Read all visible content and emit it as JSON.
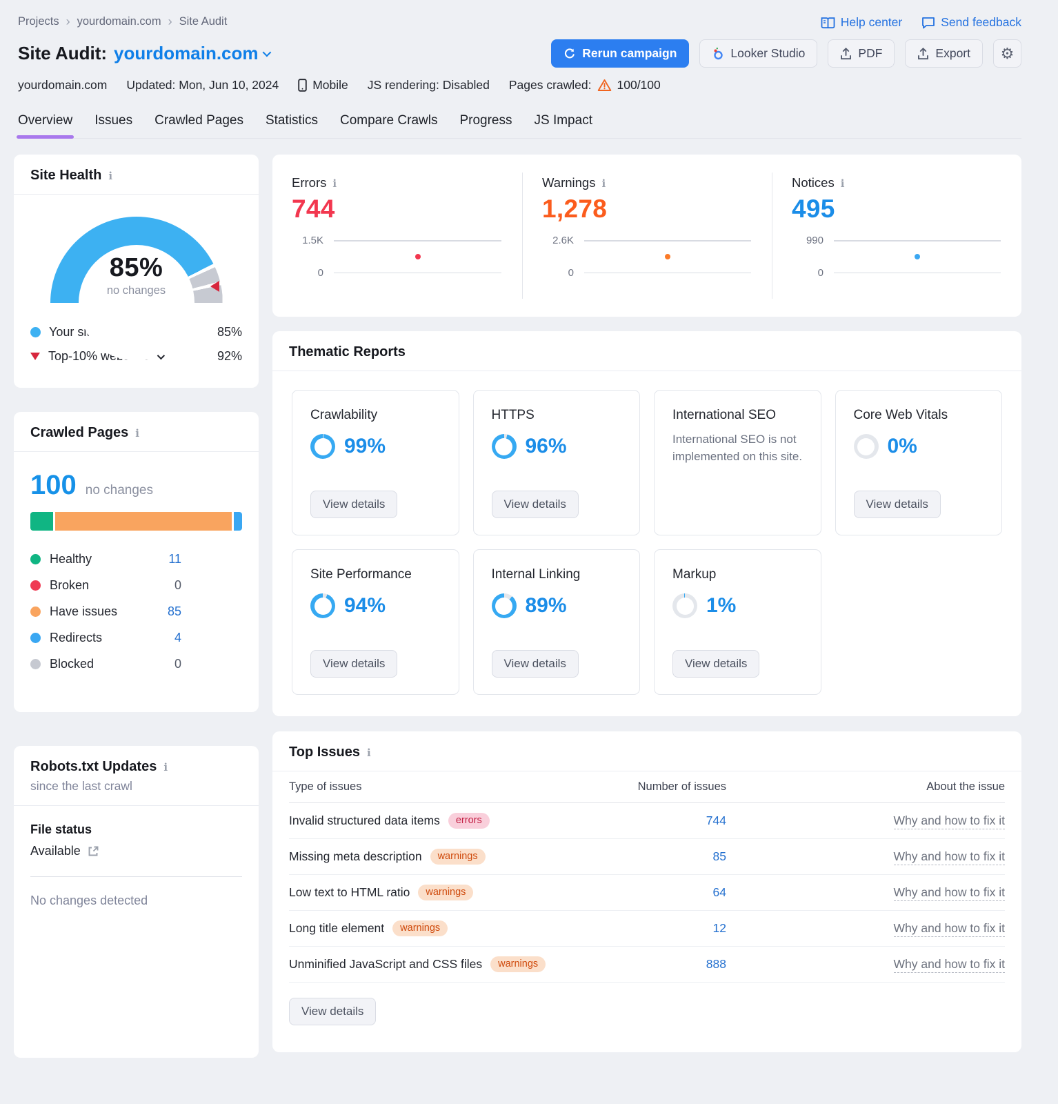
{
  "header": {
    "breadcrumb": [
      "Projects",
      "yourdomain.com",
      "Site Audit"
    ],
    "links": {
      "help_center": "Help center",
      "send_feedback": "Send feedback"
    },
    "title_label": "Site Audit:",
    "title_domain": "yourdomain.com",
    "buttons": {
      "rerun": "Rerun campaign",
      "looker": "Looker Studio",
      "pdf": "PDF",
      "export": "Export"
    },
    "meta": {
      "domain": "yourdomain.com",
      "updated": "Updated: Mon, Jun 10, 2024",
      "device": "Mobile",
      "js_rendering": "JS rendering: Disabled",
      "pages_crawled_label": "Pages crawled:",
      "pages_crawled_value": "100/100"
    },
    "tabs": [
      {
        "label": "Overview",
        "active": true
      },
      {
        "label": "Issues",
        "active": false
      },
      {
        "label": "Crawled Pages",
        "active": false
      },
      {
        "label": "Statistics",
        "active": false
      },
      {
        "label": "Compare Crawls",
        "active": false
      },
      {
        "label": "Progress",
        "active": false
      },
      {
        "label": "JS Impact",
        "active": false
      }
    ]
  },
  "site_health": {
    "title": "Site Health",
    "value": 85,
    "value_label": "85%",
    "change_label": "no changes",
    "benchmark": 92,
    "arc_color": "#3db1f2",
    "track_color": "#c7cad2",
    "marker_color": "#d7263d",
    "legend": [
      {
        "marker": "dot",
        "marker_color": "#3db1f2",
        "label": "Your site",
        "value": "85%"
      },
      {
        "marker": "triangle-down",
        "marker_color": "#d7263d",
        "label": "Top-10% websites",
        "value": "92%",
        "has_chevron": true
      }
    ]
  },
  "summary": [
    {
      "label": "Errors",
      "value_label": "744",
      "value": 744,
      "axis_max_label": "1.5K",
      "axis_min_label": "0",
      "max": 1500,
      "color": "#f2374f",
      "dot_color": "#f2374f"
    },
    {
      "label": "Warnings",
      "value_label": "1,278",
      "value": 1278,
      "axis_max_label": "2.6K",
      "axis_min_label": "0",
      "max": 2600,
      "color": "#fb5c1d",
      "dot_color": "#fb7a28"
    },
    {
      "label": "Notices",
      "value_label": "495",
      "value": 495,
      "axis_max_label": "990",
      "axis_min_label": "0",
      "max": 990,
      "color": "#1b8de8",
      "dot_color": "#3aa7f2"
    }
  ],
  "thematic": {
    "title": "Thematic Reports",
    "button": "View details",
    "ring_color": "#36a9f2",
    "ring_track": "#e4e7ec",
    "cards": [
      {
        "title": "Crawlability",
        "kind": "ring",
        "percent": 99,
        "percent_label": "99%",
        "has_button": true
      },
      {
        "title": "HTTPS",
        "kind": "ring",
        "percent": 96,
        "percent_label": "96%",
        "has_button": true
      },
      {
        "title": "International SEO",
        "kind": "text",
        "text": "International SEO is not implemented on this site.",
        "has_button": false
      },
      {
        "title": "Core Web Vitals",
        "kind": "ring",
        "percent": 0,
        "percent_label": "0%",
        "has_button": true
      },
      {
        "title": "Site Performance",
        "kind": "ring",
        "percent": 94,
        "percent_label": "94%",
        "has_button": true
      },
      {
        "title": "Internal Linking",
        "kind": "ring",
        "percent": 89,
        "percent_label": "89%",
        "has_button": true
      },
      {
        "title": "Markup",
        "kind": "ring",
        "percent": 1,
        "percent_label": "1%",
        "has_button": true
      }
    ]
  },
  "crawled_pages": {
    "title": "Crawled Pages",
    "total": "100",
    "change_label": "no changes",
    "segments": [
      {
        "label": "Healthy",
        "value": 11,
        "color": "#10b583"
      },
      {
        "label": "Have issues",
        "value": 85,
        "color": "#f9a45f"
      },
      {
        "label": "Redirects",
        "value": 4,
        "color": "#3aa7f2"
      }
    ],
    "legend": [
      {
        "label": "Healthy",
        "count": "11",
        "color": "#10b583",
        "link": true
      },
      {
        "label": "Broken",
        "count": "0",
        "color": "#ef3a53",
        "link": false
      },
      {
        "label": "Have issues",
        "count": "85",
        "color": "#f9a45f",
        "link": true
      },
      {
        "label": "Redirects",
        "count": "4",
        "color": "#3aa7f2",
        "link": true
      },
      {
        "label": "Blocked",
        "count": "0",
        "color": "#c6c9d1",
        "link": false
      }
    ]
  },
  "robots": {
    "title": "Robots.txt Updates",
    "subtitle": "since the last crawl",
    "file_status_label": "File status",
    "file_status_value": "Available",
    "note": "No changes detected"
  },
  "top_issues": {
    "title": "Top Issues",
    "columns": [
      "Type of issues",
      "Number of issues",
      "About the issue"
    ],
    "link_label": "Why and how to fix it",
    "button": "View details",
    "rows": [
      {
        "type": "Invalid structured data items",
        "badge": "errors",
        "count": "744"
      },
      {
        "type": "Missing meta description",
        "badge": "warnings",
        "count": "85"
      },
      {
        "type": "Low text to HTML ratio",
        "badge": "warnings",
        "count": "64"
      },
      {
        "type": "Long title element",
        "badge": "warnings",
        "count": "12"
      },
      {
        "type": "Unminified JavaScript and CSS files",
        "badge": "warnings",
        "count": "888"
      }
    ]
  }
}
